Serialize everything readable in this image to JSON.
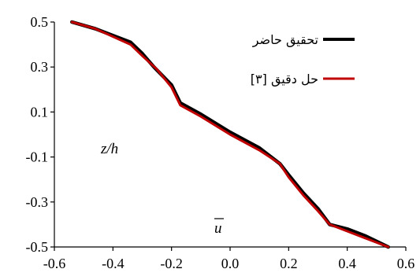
{
  "chart_data": {
    "type": "line",
    "title": "",
    "xlabel": "",
    "ylabel": "",
    "xlim": [
      -0.6,
      0.6
    ],
    "ylim": [
      -0.5,
      0.5
    ],
    "x_ticks": [
      -0.6,
      -0.4,
      -0.2,
      0.0,
      0.2,
      0.4,
      0.6
    ],
    "y_ticks": [
      -0.5,
      -0.3,
      -0.1,
      0.1,
      0.3,
      0.5
    ],
    "x_tick_labels": [
      "-0.6",
      "-0.4",
      "-0.2",
      "0.0",
      "0.2",
      "0.4",
      "0.6"
    ],
    "y_tick_labels": [
      "-0.5",
      "-0.3",
      "-0.1",
      "0.1",
      "0.3",
      "0.5"
    ],
    "grid": false,
    "legend_position": "top-right",
    "annotations": {
      "z_over_h": "z/h",
      "u_bar": "u"
    },
    "series": [
      {
        "name": "تحقیق حاضر",
        "color": "#000000",
        "points": [
          [
            -0.54,
            0.5
          ],
          [
            -0.46,
            0.47
          ],
          [
            -0.34,
            0.41
          ],
          [
            -0.3,
            0.36
          ],
          [
            -0.26,
            0.3
          ],
          [
            -0.2,
            0.22
          ],
          [
            -0.17,
            0.14
          ],
          [
            -0.1,
            0.09
          ],
          [
            0.0,
            0.01
          ],
          [
            0.1,
            -0.06
          ],
          [
            0.17,
            -0.13
          ],
          [
            0.2,
            -0.18
          ],
          [
            0.25,
            -0.26
          ],
          [
            0.3,
            -0.33
          ],
          [
            0.34,
            -0.4
          ],
          [
            0.4,
            -0.42
          ],
          [
            0.46,
            -0.45
          ],
          [
            0.54,
            -0.5
          ]
        ]
      },
      {
        "name": "حل دقیق [۳]",
        "color": "#c00000",
        "points": [
          [
            -0.54,
            0.5
          ],
          [
            -0.46,
            0.47
          ],
          [
            -0.34,
            0.4
          ],
          [
            -0.3,
            0.35
          ],
          [
            -0.25,
            0.29
          ],
          [
            -0.2,
            0.21
          ],
          [
            -0.17,
            0.13
          ],
          [
            -0.1,
            0.08
          ],
          [
            0.0,
            0.0
          ],
          [
            0.1,
            -0.07
          ],
          [
            0.17,
            -0.13
          ],
          [
            0.2,
            -0.19
          ],
          [
            0.25,
            -0.27
          ],
          [
            0.3,
            -0.34
          ],
          [
            0.34,
            -0.4
          ],
          [
            0.4,
            -0.43
          ],
          [
            0.46,
            -0.46
          ],
          [
            0.54,
            -0.5
          ]
        ]
      }
    ]
  }
}
